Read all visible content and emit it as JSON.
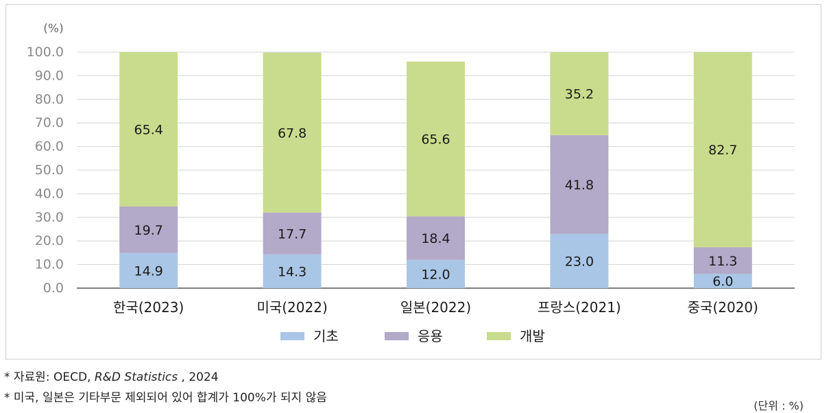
{
  "chart_data": {
    "type": "bar",
    "stacked": true,
    "unit_label": "(%)",
    "categories": [
      "한국(2023)",
      "미국(2022)",
      "일본(2022)",
      "프랑스(2021)",
      "중국(2020)"
    ],
    "series": [
      {
        "name": "기초",
        "color": "#a9c6e6",
        "values": [
          14.9,
          14.3,
          12.0,
          23.0,
          6.0
        ]
      },
      {
        "name": "응용",
        "color": "#b3a9c9",
        "values": [
          19.7,
          17.7,
          18.4,
          41.8,
          11.3
        ]
      },
      {
        "name": "개발",
        "color": "#c9dc8d",
        "values": [
          65.4,
          67.8,
          65.6,
          35.2,
          82.7
        ]
      }
    ],
    "ylim": [
      0,
      100
    ],
    "yticks": [
      "0.0",
      "10.0",
      "20.0",
      "30.0",
      "40.0",
      "50.0",
      "60.0",
      "70.0",
      "80.0",
      "90.0",
      "100.0"
    ],
    "grid": true,
    "legend_position": "bottom"
  },
  "notes": {
    "source_prefix": "* 자료원: OECD, ",
    "source_title": "R&D Statistics",
    "source_suffix": " , 2024",
    "exclusion": "* 미국, 일본은 기타부문 제외되어 있어 합계가 100%가 되지 않음",
    "unit": "(단위 : %)"
  }
}
